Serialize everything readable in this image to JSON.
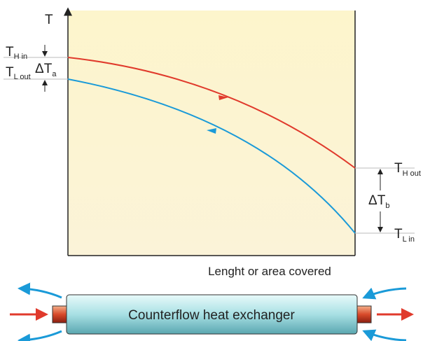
{
  "axis": {
    "y_label": "T",
    "x_label": "Lenght or area covered"
  },
  "left_labels": [
    {
      "main": "T",
      "sub": "H in"
    },
    {
      "main": "T",
      "sub": "L out"
    }
  ],
  "delta_a": {
    "main": "ΔT",
    "sub": "a"
  },
  "right_labels": [
    {
      "main": "T",
      "sub": "H out"
    },
    {
      "main": "T",
      "sub": "L in"
    }
  ],
  "delta_b": {
    "main": "ΔT",
    "sub": "b"
  },
  "exchanger": {
    "label": "Counterflow heat exchanger"
  }
}
